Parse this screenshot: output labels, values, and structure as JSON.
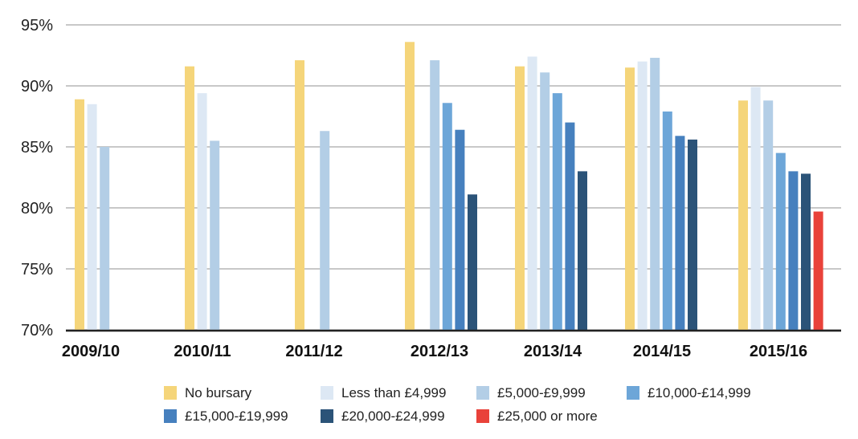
{
  "chart_data": {
    "type": "bar",
    "title": "",
    "xlabel": "",
    "ylabel": "",
    "ylim": [
      70,
      95
    ],
    "y_ticks": [
      70,
      75,
      80,
      85,
      90,
      95
    ],
    "y_tick_labels": [
      "70%",
      "75%",
      "80%",
      "85%",
      "90%",
      "95%"
    ],
    "grid": true,
    "legend_position": "bottom",
    "categories": [
      "2009/10",
      "2010/11",
      "2011/12",
      "2012/13",
      "2013/14",
      "2014/15",
      "2015/16"
    ],
    "series": [
      {
        "name": "No bursary",
        "color": "#F5D57A",
        "values": [
          88.9,
          91.6,
          92.1,
          93.6,
          91.6,
          91.5,
          88.8
        ]
      },
      {
        "name": "Less than £4,999",
        "color": "#DDE8F4",
        "values": [
          88.5,
          89.4,
          null,
          null,
          92.4,
          92.0,
          89.9
        ]
      },
      {
        "name": "£5,000-£9,999",
        "color": "#B3CEE6",
        "values": [
          85.0,
          85.5,
          86.3,
          92.1,
          91.1,
          92.3,
          88.8
        ]
      },
      {
        "name": "£10,000-£14,999",
        "color": "#6DA6D8",
        "values": [
          null,
          null,
          null,
          88.6,
          89.4,
          87.9,
          84.5
        ]
      },
      {
        "name": "£15,000-£19,999",
        "color": "#4680BE",
        "values": [
          null,
          null,
          null,
          86.4,
          87.0,
          85.9,
          83.0
        ]
      },
      {
        "name": "£20,000-£24,999",
        "color": "#2B5378",
        "values": [
          null,
          null,
          null,
          81.1,
          83.0,
          85.6,
          82.8
        ]
      },
      {
        "name": "£25,000 or more",
        "color": "#E9423A",
        "values": [
          null,
          null,
          null,
          null,
          null,
          null,
          79.7
        ]
      }
    ]
  }
}
